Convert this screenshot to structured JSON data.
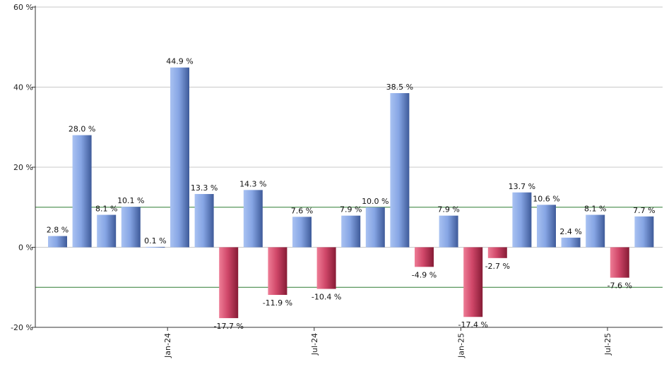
{
  "chart_data": {
    "type": "bar",
    "title": "",
    "xlabel": "",
    "ylabel": "",
    "ylim": [
      -20,
      60
    ],
    "yticks": [
      -20,
      0,
      20,
      40,
      60
    ],
    "ytick_labels": [
      "-20 %",
      "0 %",
      "20 %",
      "40 %",
      "60 %"
    ],
    "reference_lines": [
      10,
      -10
    ],
    "grid": true,
    "x_tick_labels": [
      {
        "label": "Jan-24",
        "index": 4.5
      },
      {
        "label": "Jul-24",
        "index": 10.5
      },
      {
        "label": "Jan-25",
        "index": 16.5
      },
      {
        "label": "Jul-25",
        "index": 22.5
      }
    ],
    "values": [
      2.8,
      28.0,
      8.1,
      10.1,
      0.1,
      44.9,
      13.3,
      -17.7,
      14.3,
      -11.9,
      7.6,
      -10.4,
      7.9,
      10.0,
      38.5,
      -4.9,
      7.9,
      -17.4,
      -2.7,
      13.7,
      10.6,
      2.4,
      8.1,
      -7.6,
      7.7
    ],
    "labels": [
      "2.8 %",
      "28.0 %",
      "8.1 %",
      "10.1 %",
      "0.1 %",
      "44.9 %",
      "13.3 %",
      "-17.7 %",
      "14.3 %",
      "-11.9 %",
      "7.6 %",
      "-10.4 %",
      "7.9 %",
      "10.0 %",
      "38.5 %",
      "-4.9 %",
      "7.9 %",
      "-17.4 %",
      "-2.7 %",
      "13.7 %",
      "10.6 %",
      "2.4 %",
      "8.1 %",
      "-7.6 %",
      "7.7 %"
    ],
    "colors": {
      "positive": "#7f9fdf",
      "positive_dark": "#3d5a9a",
      "negative": "#d14a6a",
      "negative_dark": "#8a1f38",
      "reference_line": "#2e7d32",
      "grid": "#c8c8c8",
      "axis": "#333333"
    }
  }
}
